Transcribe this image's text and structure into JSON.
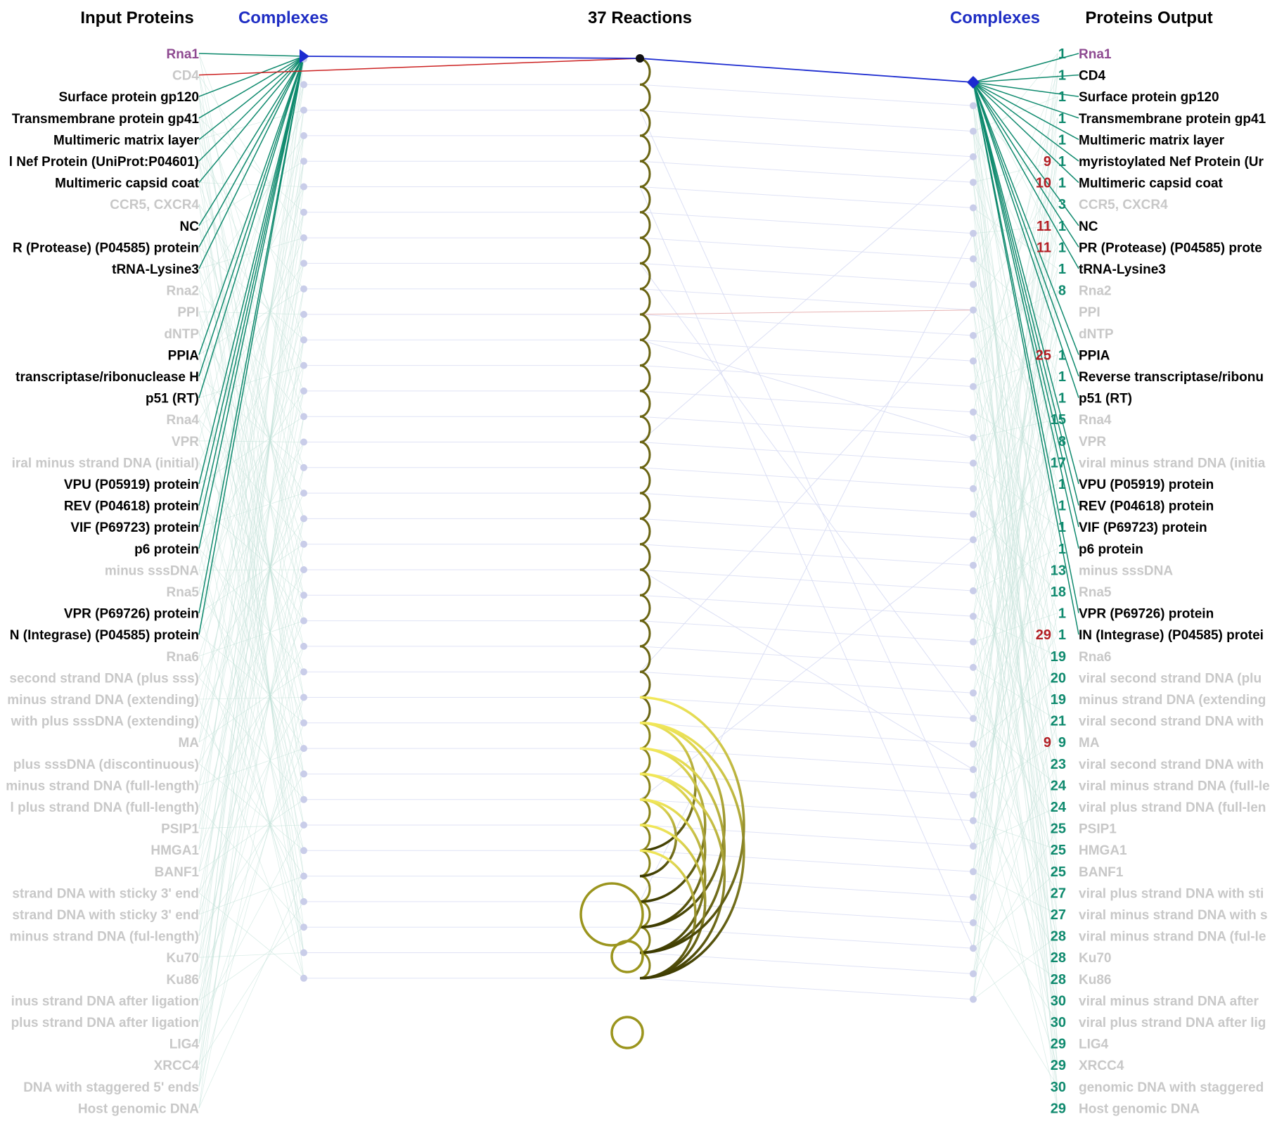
{
  "headers": {
    "input": "Input Proteins",
    "complexes_left": "Complexes",
    "reactions": "37 Reactions",
    "complexes_right": "Complexes",
    "output": "Proteins Output"
  },
  "colors": {
    "header_black": "#000000",
    "header_blue": "#1f2ec4",
    "active_text": "#000000",
    "faded_text": "#c8c8c8",
    "rna1_purple": "#8e4a91",
    "active_edge_teal": "#0f8a6e",
    "faded_edge_teal": "#bfe0d6",
    "red_edge": "#cc2222",
    "blue_edge": "#1c2bd0",
    "faded_blue": "#d8dcf3",
    "node_faded": "#c9cde9",
    "reaction_yellow_light": "#f2e85a",
    "reaction_yellow_dark": "#3c3a00",
    "count_teal": "#0f8a6e",
    "count_red": "#b31e24",
    "count_faded": "#aeddd0"
  },
  "input_labels": [
    {
      "text": "Rna1",
      "state": "purple"
    },
    {
      "text": "CD4",
      "state": "faded"
    },
    {
      "text": "Surface protein gp120",
      "state": "active"
    },
    {
      "text": "Transmembrane protein gp41",
      "state": "active"
    },
    {
      "text": "Multimeric matrix layer",
      "state": "active"
    },
    {
      "text": "l Nef Protein (UniProt:P04601)",
      "state": "active"
    },
    {
      "text": "Multimeric capsid coat",
      "state": "active"
    },
    {
      "text": "CCR5, CXCR4",
      "state": "faded"
    },
    {
      "text": "NC",
      "state": "active"
    },
    {
      "text": "R (Protease) (P04585) protein",
      "state": "active"
    },
    {
      "text": "tRNA-Lysine3",
      "state": "active"
    },
    {
      "text": "Rna2",
      "state": "faded"
    },
    {
      "text": "PPI",
      "state": "faded"
    },
    {
      "text": "dNTP",
      "state": "faded"
    },
    {
      "text": "PPIA",
      "state": "active"
    },
    {
      "text": "transcriptase/ribonuclease H",
      "state": "active"
    },
    {
      "text": "p51 (RT)",
      "state": "active"
    },
    {
      "text": "Rna4",
      "state": "faded"
    },
    {
      "text": "VPR",
      "state": "faded"
    },
    {
      "text": "iral minus strand DNA (initial)",
      "state": "faded"
    },
    {
      "text": "VPU (P05919) protein",
      "state": "active"
    },
    {
      "text": "REV (P04618) protein",
      "state": "active"
    },
    {
      "text": "VIF (P69723) protein",
      "state": "active"
    },
    {
      "text": "p6 protein",
      "state": "active"
    },
    {
      "text": "minus sssDNA",
      "state": "faded"
    },
    {
      "text": "Rna5",
      "state": "faded"
    },
    {
      "text": "VPR (P69726) protein",
      "state": "active"
    },
    {
      "text": "N (Integrase) (P04585) protein",
      "state": "active"
    },
    {
      "text": "Rna6",
      "state": "faded"
    },
    {
      "text": "second strand DNA (plus sss)",
      "state": "faded"
    },
    {
      "text": "minus strand DNA (extending)",
      "state": "faded"
    },
    {
      "text": "with plus sssDNA (extending)",
      "state": "faded"
    },
    {
      "text": "MA",
      "state": "faded"
    },
    {
      "text": "plus sssDNA (discontinuous)",
      "state": "faded"
    },
    {
      "text": "minus strand DNA (full-length)",
      "state": "faded"
    },
    {
      "text": "l plus strand DNA (full-length)",
      "state": "faded"
    },
    {
      "text": "PSIP1",
      "state": "faded"
    },
    {
      "text": "HMGA1",
      "state": "faded"
    },
    {
      "text": "BANF1",
      "state": "faded"
    },
    {
      "text": "strand DNA with sticky 3' end",
      "state": "faded"
    },
    {
      "text": "strand DNA with sticky 3' end",
      "state": "faded"
    },
    {
      "text": "minus strand DNA (ful-length)",
      "state": "faded"
    },
    {
      "text": "Ku70",
      "state": "faded"
    },
    {
      "text": "Ku86",
      "state": "faded"
    },
    {
      "text": "inus strand DNA after ligation",
      "state": "faded"
    },
    {
      "text": "plus strand DNA after ligation",
      "state": "faded"
    },
    {
      "text": "LIG4",
      "state": "faded"
    },
    {
      "text": "XRCC4",
      "state": "faded"
    },
    {
      "text": "DNA with staggered 5' ends",
      "state": "faded"
    },
    {
      "text": "Host genomic DNA",
      "state": "faded"
    }
  ],
  "output_labels": [
    {
      "text": "Rna1",
      "state": "purple",
      "counts": [
        {
          "v": "1",
          "c": "teal"
        }
      ]
    },
    {
      "text": "CD4",
      "state": "active",
      "counts": [
        {
          "v": "1",
          "c": "teal"
        }
      ]
    },
    {
      "text": "Surface protein gp120",
      "state": "active",
      "counts": [
        {
          "v": "1",
          "c": "teal"
        }
      ]
    },
    {
      "text": "Transmembrane protein gp41",
      "state": "active",
      "counts": [
        {
          "v": "1",
          "c": "teal"
        }
      ]
    },
    {
      "text": "Multimeric matrix layer",
      "state": "active",
      "counts": [
        {
          "v": "1",
          "c": "teal"
        }
      ]
    },
    {
      "text": "myristoylated Nef Protein (Ur",
      "state": "active",
      "counts": [
        {
          "v": "9",
          "c": "red"
        },
        {
          "v": "1",
          "c": "teal"
        }
      ]
    },
    {
      "text": "Multimeric capsid coat",
      "state": "active",
      "counts": [
        {
          "v": "10",
          "c": "red"
        },
        {
          "v": "1",
          "c": "teal"
        }
      ]
    },
    {
      "text": "CCR5, CXCR4",
      "state": "faded",
      "counts": [
        {
          "v": "3",
          "c": "teal"
        }
      ]
    },
    {
      "text": "NC",
      "state": "active",
      "counts": [
        {
          "v": "11",
          "c": "red"
        },
        {
          "v": "1",
          "c": "teal"
        }
      ]
    },
    {
      "text": "PR (Protease) (P04585) prote",
      "state": "active",
      "counts": [
        {
          "v": "11",
          "c": "red"
        },
        {
          "v": "1",
          "c": "teal"
        }
      ]
    },
    {
      "text": "tRNA-Lysine3",
      "state": "active",
      "counts": [
        {
          "v": "1",
          "c": "teal"
        }
      ]
    },
    {
      "text": "Rna2",
      "state": "faded",
      "counts": [
        {
          "v": "8",
          "c": "teal"
        }
      ]
    },
    {
      "text": "PPI",
      "state": "faded",
      "counts": []
    },
    {
      "text": "dNTP",
      "state": "faded",
      "counts": []
    },
    {
      "text": "PPIA",
      "state": "active",
      "counts": [
        {
          "v": "25",
          "c": "red"
        },
        {
          "v": "1",
          "c": "teal"
        }
      ]
    },
    {
      "text": "Reverse transcriptase/ribonu",
      "state": "active",
      "counts": [
        {
          "v": "1",
          "c": "teal"
        }
      ]
    },
    {
      "text": "p51 (RT)",
      "state": "active",
      "counts": [
        {
          "v": "1",
          "c": "teal"
        }
      ]
    },
    {
      "text": "Rna4",
      "state": "faded",
      "counts": [
        {
          "v": "15",
          "c": "teal"
        }
      ]
    },
    {
      "text": "VPR",
      "state": "faded",
      "counts": [
        {
          "v": "8",
          "c": "teal"
        }
      ]
    },
    {
      "text": "viral minus strand DNA (initia",
      "state": "faded",
      "counts": [
        {
          "v": "17",
          "c": "teal"
        }
      ]
    },
    {
      "text": "VPU (P05919) protein",
      "state": "active",
      "counts": [
        {
          "v": "1",
          "c": "teal"
        }
      ]
    },
    {
      "text": "REV (P04618) protein",
      "state": "active",
      "counts": [
        {
          "v": "1",
          "c": "teal"
        }
      ]
    },
    {
      "text": "VIF (P69723) protein",
      "state": "active",
      "counts": [
        {
          "v": "1",
          "c": "teal"
        }
      ]
    },
    {
      "text": "p6 protein",
      "state": "active",
      "counts": [
        {
          "v": "1",
          "c": "teal"
        }
      ]
    },
    {
      "text": "minus sssDNA",
      "state": "faded",
      "counts": [
        {
          "v": "13",
          "c": "teal"
        }
      ]
    },
    {
      "text": "Rna5",
      "state": "faded",
      "counts": [
        {
          "v": "18",
          "c": "teal"
        }
      ]
    },
    {
      "text": "VPR (P69726) protein",
      "state": "active",
      "counts": [
        {
          "v": "1",
          "c": "teal"
        }
      ]
    },
    {
      "text": "IN (Integrase) (P04585) protei",
      "state": "active",
      "counts": [
        {
          "v": "29",
          "c": "red"
        },
        {
          "v": "1",
          "c": "teal"
        }
      ]
    },
    {
      "text": "Rna6",
      "state": "faded",
      "counts": [
        {
          "v": "19",
          "c": "teal"
        }
      ]
    },
    {
      "text": "viral second strand DNA (plu",
      "state": "faded",
      "counts": [
        {
          "v": "20",
          "c": "teal"
        }
      ]
    },
    {
      "text": "minus strand DNA (extending",
      "state": "faded",
      "counts": [
        {
          "v": "19",
          "c": "teal"
        }
      ]
    },
    {
      "text": "viral second strand DNA with",
      "state": "faded",
      "counts": [
        {
          "v": "21",
          "c": "teal"
        }
      ]
    },
    {
      "text": "MA",
      "state": "faded",
      "counts": [
        {
          "v": "9",
          "c": "red"
        },
        {
          "v": "9",
          "c": "teal"
        }
      ]
    },
    {
      "text": "viral second strand DNA with",
      "state": "faded",
      "counts": [
        {
          "v": "23",
          "c": "teal"
        }
      ]
    },
    {
      "text": "viral minus strand DNA (full-le",
      "state": "faded",
      "counts": [
        {
          "v": "24",
          "c": "teal"
        }
      ]
    },
    {
      "text": "viral plus strand DNA (full-len",
      "state": "faded",
      "counts": [
        {
          "v": "24",
          "c": "teal"
        }
      ]
    },
    {
      "text": "PSIP1",
      "state": "faded",
      "counts": [
        {
          "v": "25",
          "c": "teal"
        }
      ]
    },
    {
      "text": "HMGA1",
      "state": "faded",
      "counts": [
        {
          "v": "25",
          "c": "teal"
        }
      ]
    },
    {
      "text": "BANF1",
      "state": "faded",
      "counts": [
        {
          "v": "25",
          "c": "teal"
        }
      ]
    },
    {
      "text": "viral plus strand DNA with sti",
      "state": "faded",
      "counts": [
        {
          "v": "27",
          "c": "teal"
        }
      ]
    },
    {
      "text": "viral minus strand DNA with s",
      "state": "faded",
      "counts": [
        {
          "v": "27",
          "c": "teal"
        }
      ]
    },
    {
      "text": "viral minus strand DNA (ful-le",
      "state": "faded",
      "counts": [
        {
          "v": "28",
          "c": "teal"
        }
      ]
    },
    {
      "text": "Ku70",
      "state": "faded",
      "counts": [
        {
          "v": "28",
          "c": "teal"
        }
      ]
    },
    {
      "text": "Ku86",
      "state": "faded",
      "counts": [
        {
          "v": "28",
          "c": "teal"
        }
      ]
    },
    {
      "text": "viral minus strand DNA after",
      "state": "faded",
      "counts": [
        {
          "v": "30",
          "c": "teal"
        }
      ]
    },
    {
      "text": "viral plus strand DNA after lig",
      "state": "faded",
      "counts": [
        {
          "v": "30",
          "c": "teal"
        }
      ]
    },
    {
      "text": "LIG4",
      "state": "faded",
      "counts": [
        {
          "v": "29",
          "c": "teal"
        }
      ]
    },
    {
      "text": "XRCC4",
      "state": "faded",
      "counts": [
        {
          "v": "29",
          "c": "teal"
        }
      ]
    },
    {
      "text": "genomic DNA with staggered",
      "state": "faded",
      "counts": [
        {
          "v": "30",
          "c": "teal"
        }
      ]
    },
    {
      "text": "Host genomic DNA",
      "state": "faded",
      "counts": [
        {
          "v": "29",
          "c": "teal"
        }
      ]
    }
  ],
  "reactions": {
    "count": 37,
    "loops": [
      {
        "from": 27,
        "to": 32
      },
      {
        "from": 27,
        "to": 35
      },
      {
        "from": 27,
        "to": 37
      },
      {
        "from": 28,
        "to": 34
      },
      {
        "from": 28,
        "to": 36
      },
      {
        "from": 29,
        "to": 35
      },
      {
        "from": 29,
        "to": 37
      },
      {
        "from": 30,
        "to": 33
      },
      {
        "from": 30,
        "to": 36
      },
      {
        "from": 31,
        "to": 37
      },
      {
        "from": 32,
        "to": 37
      },
      {
        "from": 26,
        "to": 36
      }
    ]
  }
}
